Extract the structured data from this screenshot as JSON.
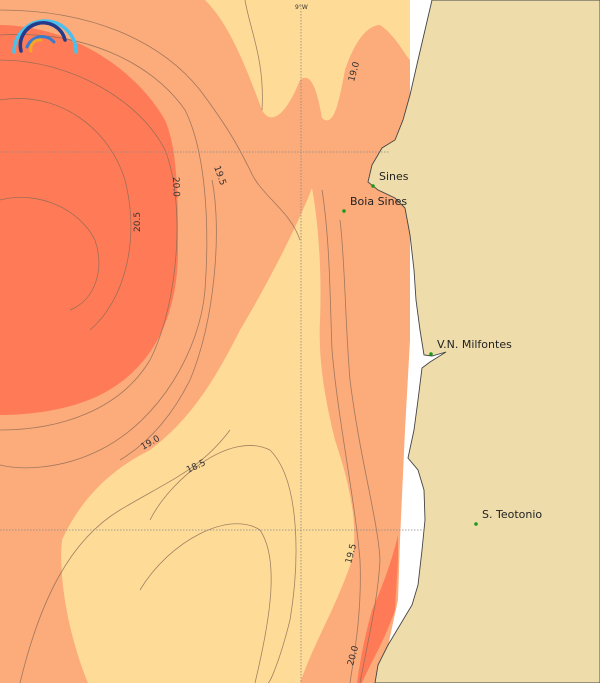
{
  "map": {
    "colors": {
      "warm_band": "#ff7b57",
      "mid_band": "#fcab7b",
      "cool_band": "#fedc98",
      "land": "#eedcab",
      "coast": "#444444",
      "station": "#1a9a1a"
    },
    "grid_label": "9°W",
    "contour_labels": [
      "19.0",
      "19.5",
      "20.0",
      "20.5",
      "19.0",
      "18.5",
      "19.5",
      "20.0"
    ],
    "stations": [
      {
        "name": "Sines"
      },
      {
        "name": "Boia Sines"
      },
      {
        "name": "V.N. Milfontes"
      },
      {
        "name": "S. Teotonio"
      }
    ],
    "logo": "rainbow-arcs-logo"
  }
}
